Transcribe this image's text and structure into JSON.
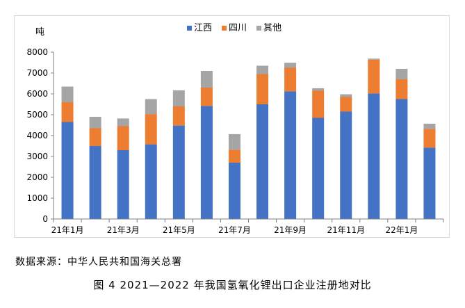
{
  "chart_data": {
    "type": "bar",
    "stacked": true,
    "ylabel": "吨",
    "ylim": [
      0,
      8000
    ],
    "yticks": [
      0,
      1000,
      2000,
      3000,
      4000,
      5000,
      6000,
      7000,
      8000
    ],
    "categories": [
      "21年1月",
      "21年2月",
      "21年3月",
      "21年4月",
      "21年5月",
      "21年6月",
      "21年7月",
      "21年8月",
      "21年9月",
      "21年10月",
      "21年11月",
      "21年12月",
      "22年1月",
      "22年2月"
    ],
    "xtick_labels": [
      "21年1月",
      "",
      "21年3月",
      "",
      "21年5月",
      "",
      "21年7月",
      "",
      "21年9月",
      "",
      "21年11月",
      "",
      "22年1月",
      ""
    ],
    "series": [
      {
        "name": "江西",
        "color": "#4472c4",
        "values": [
          4650,
          3500,
          3300,
          3580,
          4480,
          5420,
          2700,
          5500,
          6120,
          4850,
          5150,
          6020,
          5750,
          3420
        ]
      },
      {
        "name": "四川",
        "color": "#ed7d31",
        "values": [
          950,
          850,
          1150,
          1450,
          920,
          880,
          620,
          1450,
          1130,
          1300,
          700,
          1620,
          950,
          900
        ]
      },
      {
        "name": "其他",
        "color": "#a5a5a5",
        "values": [
          750,
          550,
          370,
          720,
          770,
          800,
          750,
          400,
          240,
          120,
          130,
          50,
          500,
          250
        ]
      }
    ],
    "legend_position": "top-center",
    "grid": false
  },
  "source_text": "数据来源：中华人民共和国海关总署",
  "caption_text": "图 4 2021—2022 年我国氢氧化锂出口企业注册地对比"
}
